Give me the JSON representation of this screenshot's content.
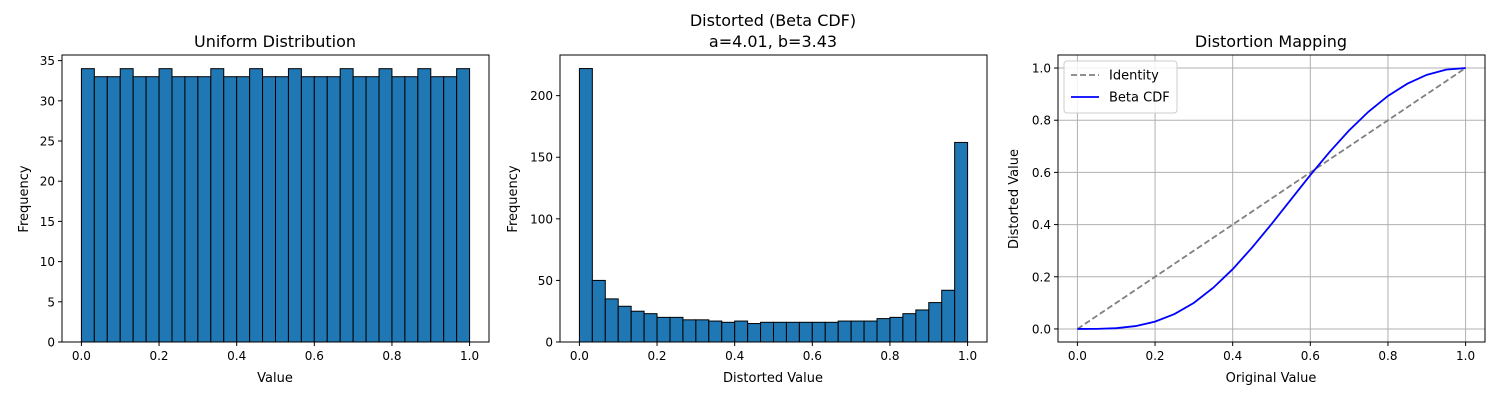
{
  "chart_data": [
    {
      "type": "bar",
      "title": "Uniform Distribution",
      "xlabel": "Value",
      "ylabel": "Frequency",
      "xlim": [
        -0.05,
        1.05
      ],
      "ylim": [
        0,
        35.7
      ],
      "xticks": [
        "0.0",
        "0.2",
        "0.4",
        "0.6",
        "0.8",
        "1.0"
      ],
      "yticks": [
        "0",
        "5",
        "10",
        "15",
        "20",
        "25",
        "30",
        "35"
      ],
      "bin_range": [
        0,
        1
      ],
      "values": [
        34,
        33,
        33,
        34,
        33,
        33,
        34,
        33,
        33,
        33,
        34,
        33,
        33,
        34,
        33,
        33,
        34,
        33,
        33,
        33,
        34,
        33,
        33,
        34,
        33,
        33,
        34,
        33,
        33,
        34
      ],
      "bar_color": "#1f77b4",
      "edge_color": "#000000"
    },
    {
      "type": "bar",
      "title": "Distorted (Beta CDF)",
      "subtitle": "a=4.01, b=3.43",
      "xlabel": "Distorted Value",
      "ylabel": "Frequency",
      "xlim": [
        -0.05,
        1.05
      ],
      "ylim": [
        0,
        233
      ],
      "xticks": [
        "0.0",
        "0.2",
        "0.4",
        "0.6",
        "0.8",
        "1.0"
      ],
      "yticks": [
        "0",
        "50",
        "100",
        "150",
        "200"
      ],
      "bin_range": [
        0,
        1
      ],
      "values": [
        222,
        50,
        35,
        29,
        25,
        23,
        20,
        20,
        18,
        18,
        17,
        16,
        17,
        15,
        16,
        16,
        16,
        16,
        16,
        16,
        17,
        17,
        17,
        19,
        20,
        23,
        26,
        32,
        42,
        162
      ],
      "bar_color": "#1f77b4",
      "edge_color": "#000000"
    },
    {
      "type": "line",
      "title": "Distortion Mapping",
      "xlabel": "Original Value",
      "ylabel": "Distorted Value",
      "xlim": [
        -0.05,
        1.05
      ],
      "ylim": [
        -0.05,
        1.05
      ],
      "xticks": [
        "0.0",
        "0.2",
        "0.4",
        "0.6",
        "0.8",
        "1.0"
      ],
      "yticks": [
        "0.0",
        "0.2",
        "0.4",
        "0.6",
        "0.8",
        "1.0"
      ],
      "grid": true,
      "legend_position": "upper-left",
      "series": [
        {
          "name": "Identity",
          "color": "#808080",
          "dash": "dashed",
          "x": [
            0.0,
            1.0
          ],
          "y": [
            0.0,
            1.0
          ]
        },
        {
          "name": "Beta CDF",
          "color": "#0000ff",
          "dash": "solid",
          "x": [
            0.0,
            0.05,
            0.1,
            0.15,
            0.2,
            0.25,
            0.3,
            0.35,
            0.4,
            0.45,
            0.5,
            0.55,
            0.6,
            0.65,
            0.7,
            0.75,
            0.8,
            0.85,
            0.9,
            0.95,
            1.0
          ],
          "y": [
            0.0,
            0.0002,
            0.003,
            0.011,
            0.028,
            0.057,
            0.1,
            0.158,
            0.229,
            0.312,
            0.402,
            0.496,
            0.59,
            0.679,
            0.761,
            0.833,
            0.893,
            0.94,
            0.974,
            0.994,
            1.0
          ]
        }
      ]
    }
  ]
}
